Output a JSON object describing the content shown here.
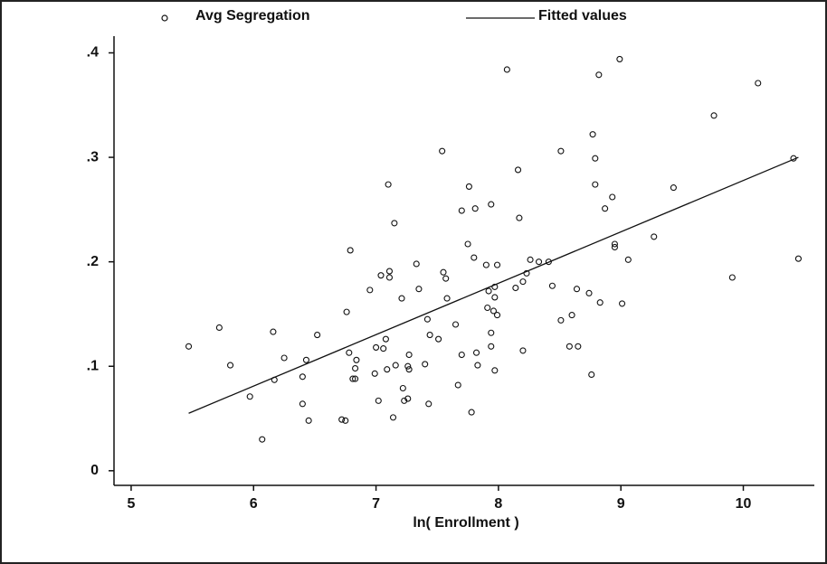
{
  "chart_data": {
    "type": "scatter",
    "x_label": "ln( Enrollment )",
    "xlim": [
      4.86,
      10.58
    ],
    "ylim": [
      -0.014,
      0.416
    ],
    "xticks": [
      5,
      6,
      7,
      8,
      9,
      10
    ],
    "yticks": [
      0,
      {
        "value": 0.1,
        "label": ".1"
      },
      {
        "value": 0.2,
        "label": ".2"
      },
      {
        "value": 0.3,
        "label": ".3"
      },
      {
        "value": 0.4,
        "label": ".4"
      }
    ],
    "series": [
      {
        "name": "Avg Segregation",
        "mark": "circle",
        "color": "#111111",
        "x": [
          5.47,
          5.72,
          5.81,
          5.97,
          6.07,
          6.16,
          6.17,
          6.25,
          6.4,
          6.4,
          6.43,
          6.45,
          6.52,
          6.72,
          6.75,
          6.76,
          6.78,
          6.79,
          6.81,
          6.83,
          6.84,
          6.83,
          6.95,
          6.99,
          7.0,
          7.02,
          7.04,
          7.06,
          7.08,
          7.1,
          7.11,
          7.11,
          7.09,
          7.14,
          7.15,
          7.16,
          7.21,
          7.22,
          7.23,
          7.26,
          7.26,
          7.27,
          7.27,
          7.33,
          7.35,
          7.4,
          7.42,
          7.44,
          7.43,
          7.51,
          7.54,
          7.55,
          7.57,
          7.58,
          7.65,
          7.67,
          7.7,
          7.7,
          7.75,
          7.76,
          7.78,
          7.8,
          7.81,
          7.82,
          7.83,
          7.9,
          7.91,
          7.92,
          7.94,
          7.94,
          7.94,
          7.96,
          7.97,
          7.97,
          7.97,
          7.99,
          7.99,
          8.07,
          8.14,
          8.16,
          8.17,
          8.2,
          8.2,
          8.23,
          8.26,
          8.33,
          8.41,
          8.44,
          8.51,
          8.51,
          8.58,
          8.6,
          8.64,
          8.65,
          8.74,
          8.77,
          8.76,
          8.79,
          8.79,
          8.82,
          8.83,
          8.87,
          8.93,
          8.95,
          8.95,
          8.99,
          9.01,
          9.06,
          9.27,
          9.43,
          9.76,
          9.91,
          10.12,
          10.41,
          10.45
        ],
        "values": [
          0.119,
          0.137,
          0.101,
          0.071,
          0.03,
          0.133,
          0.087,
          0.108,
          0.09,
          0.064,
          0.106,
          0.048,
          0.13,
          0.049,
          0.048,
          0.152,
          0.113,
          0.211,
          0.088,
          0.098,
          0.106,
          0.088,
          0.173,
          0.093,
          0.118,
          0.067,
          0.187,
          0.117,
          0.126,
          0.274,
          0.191,
          0.185,
          0.097,
          0.051,
          0.237,
          0.101,
          0.165,
          0.079,
          0.067,
          0.069,
          0.1,
          0.111,
          0.097,
          0.198,
          0.174,
          0.102,
          0.145,
          0.13,
          0.064,
          0.126,
          0.306,
          0.19,
          0.184,
          0.165,
          0.14,
          0.082,
          0.249,
          0.111,
          0.217,
          0.272,
          0.056,
          0.204,
          0.251,
          0.113,
          0.101,
          0.197,
          0.156,
          0.172,
          0.255,
          0.119,
          0.132,
          0.153,
          0.176,
          0.166,
          0.096,
          0.197,
          0.149,
          0.384,
          0.175,
          0.288,
          0.242,
          0.181,
          0.115,
          0.189,
          0.202,
          0.2,
          0.2,
          0.177,
          0.306,
          0.144,
          0.119,
          0.149,
          0.174,
          0.119,
          0.17,
          0.322,
          0.092,
          0.299,
          0.274,
          0.379,
          0.161,
          0.251,
          0.262,
          0.217,
          0.214,
          0.394,
          0.16,
          0.202,
          0.224,
          0.271,
          0.34,
          0.185,
          0.371,
          0.299,
          0.203
        ]
      },
      {
        "name": "Fitted values",
        "mark": "line",
        "color": "#111111",
        "x": [
          5.47,
          10.45
        ],
        "values": [
          0.055,
          0.3
        ]
      }
    ]
  }
}
